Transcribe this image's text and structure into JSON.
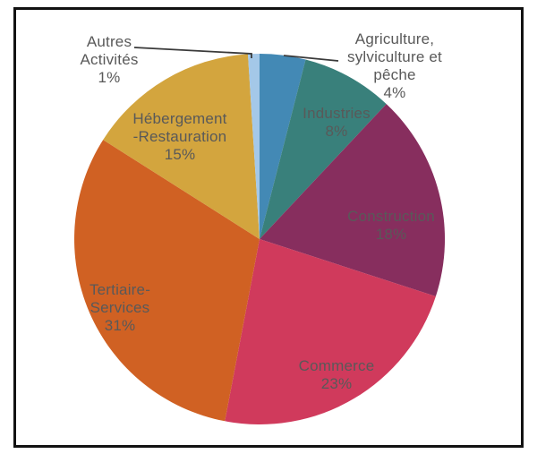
{
  "chart_data": {
    "type": "pie",
    "title": "",
    "unit": "%",
    "total": 100,
    "start_angle_deg": 0,
    "direction": "clockwise",
    "legend": "none",
    "label_color": "#595959",
    "leader_line_color": "#3a3a3a",
    "frame_border_color": "#121212",
    "background_color": "#ffffff",
    "slices": [
      {
        "name": "Agriculture, sylviculture et pêche",
        "value": 4,
        "color": "#4389b5",
        "label_lines": [
          "Agriculture,",
          "sylviculture et",
          "pêche",
          "4%"
        ],
        "label_placement": "outside-right"
      },
      {
        "name": "Industries",
        "value": 8,
        "color": "#39807b",
        "label_lines": [
          "Industries",
          "8%"
        ],
        "label_placement": "inside"
      },
      {
        "name": "Construction",
        "value": 18,
        "color": "#872e5e",
        "label_lines": [
          "Construction",
          "18%"
        ],
        "label_placement": "inside"
      },
      {
        "name": "Commerce",
        "value": 23,
        "color": "#d03a5c",
        "label_lines": [
          "Commerce",
          "23%"
        ],
        "label_placement": "inside"
      },
      {
        "name": "Tertiaire-Services",
        "value": 31,
        "color": "#d06123",
        "label_lines": [
          "Tertiaire-",
          "Services",
          "31%"
        ],
        "label_placement": "inside"
      },
      {
        "name": "Hébergement-Restauration",
        "value": 15,
        "color": "#d3a53e",
        "label_lines": [
          "Hébergement",
          "-Restauration",
          "15%"
        ],
        "label_placement": "inside"
      },
      {
        "name": "Autres Activités",
        "value": 1,
        "color": "#a4c8e8",
        "label_lines": [
          "Autres",
          "Activités",
          "1%"
        ],
        "label_placement": "outside-left"
      }
    ]
  }
}
